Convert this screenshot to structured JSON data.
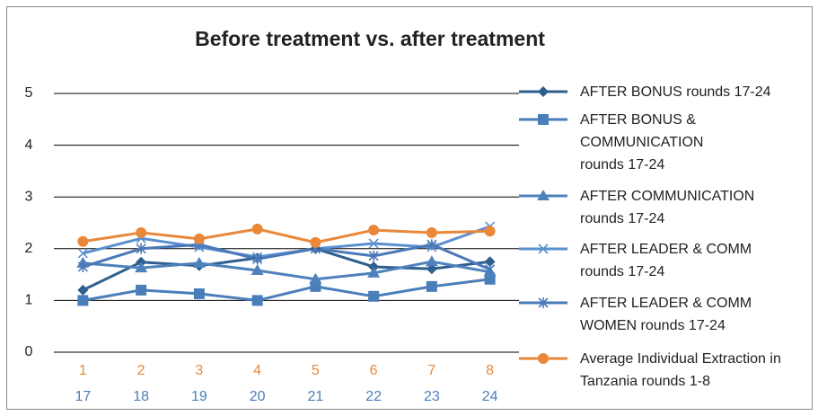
{
  "chart_data": {
    "type": "line",
    "title": "Before treatment vs. after treatment",
    "categories": [
      "1",
      "2",
      "3",
      "4",
      "5",
      "6",
      "7",
      "8"
    ],
    "categories_color": "#e9883a",
    "categories2": [
      "17",
      "18",
      "19",
      "20",
      "21",
      "22",
      "23",
      "24"
    ],
    "categories2_color": "#4a7ebb",
    "ylim": [
      0,
      5
    ],
    "yticks": [
      0,
      1,
      2,
      3,
      4,
      5
    ],
    "grid": true,
    "legend": "right",
    "series": [
      {
        "name": "AFTER BONUS rounds 17-24",
        "color": "#2e5f8f",
        "marker": "diamond",
        "values": [
          1.2,
          1.74,
          1.67,
          1.82,
          2.0,
          1.65,
          1.61,
          1.75
        ]
      },
      {
        "name": "AFTER BONUS & COMMUNICATION rounds 17-24",
        "color": "#4a7ebb",
        "marker": "square",
        "values": [
          1.0,
          1.2,
          1.13,
          1.0,
          1.27,
          1.08,
          1.27,
          1.41
        ]
      },
      {
        "name": "AFTER COMMUNICATION rounds 17-24",
        "color": "#4f81bd",
        "marker": "triangle",
        "values": [
          1.72,
          1.63,
          1.72,
          1.58,
          1.41,
          1.53,
          1.75,
          1.55
        ]
      },
      {
        "name": "AFTER LEADER & COMM rounds 17-24",
        "color": "#5b8fd0",
        "marker": "x",
        "values": [
          1.91,
          2.2,
          2.03,
          1.84,
          2.0,
          2.1,
          2.03,
          2.43
        ]
      },
      {
        "name": "AFTER LEADER & COMM WOMEN rounds 17-24",
        "color": "#4a78b8",
        "marker": "star",
        "values": [
          1.65,
          2.0,
          2.08,
          1.8,
          2.0,
          1.86,
          2.08,
          1.6
        ]
      },
      {
        "name": "Average Individual Extraction in Tanzania rounds 1-8",
        "color": "#e9883a",
        "marker": "circle",
        "values": [
          2.14,
          2.31,
          2.19,
          2.38,
          2.12,
          2.36,
          2.31,
          2.34
        ]
      }
    ]
  }
}
